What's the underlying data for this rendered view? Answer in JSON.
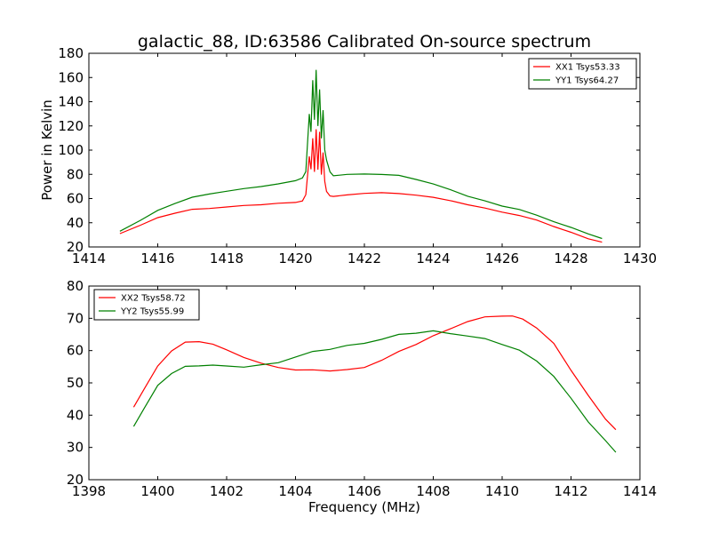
{
  "chart_data": [
    {
      "type": "line",
      "title": "galactic_88, ID:63586 Calibrated On-source spectrum",
      "xlabel": "",
      "ylabel": "Power in Kelvin",
      "xlim": [
        1414,
        1430
      ],
      "ylim": [
        20,
        180
      ],
      "xticks": [
        "1414",
        "1416",
        "1418",
        "1420",
        "1422",
        "1424",
        "1426",
        "1428",
        "1430"
      ],
      "yticks": [
        "20",
        "40",
        "60",
        "80",
        "100",
        "120",
        "140",
        "160",
        "180"
      ],
      "grid": false,
      "legend_position": "top-right",
      "series": [
        {
          "name": "XX1 Tsys53.33",
          "color": "#ff0000",
          "x": [
            1414.9,
            1415.5,
            1416.0,
            1416.5,
            1417.0,
            1417.5,
            1418.0,
            1418.5,
            1419.0,
            1419.5,
            1420.0,
            1420.2,
            1420.3,
            1420.4,
            1420.45,
            1420.5,
            1420.55,
            1420.6,
            1420.65,
            1420.7,
            1420.75,
            1420.8,
            1420.85,
            1420.9,
            1421.0,
            1421.1,
            1421.5,
            1422.0,
            1422.5,
            1423.0,
            1423.5,
            1424.0,
            1424.5,
            1425.0,
            1425.5,
            1426.0,
            1426.5,
            1427.0,
            1427.5,
            1428.0,
            1428.5,
            1428.9
          ],
          "y": [
            31,
            38,
            44,
            48,
            51,
            52,
            53,
            54,
            55,
            56,
            57,
            58,
            63,
            95,
            84,
            110,
            82,
            117,
            84,
            115,
            80,
            98,
            74,
            66,
            62,
            62,
            63,
            64,
            65,
            64,
            63,
            61,
            58,
            55,
            52,
            49,
            46,
            42,
            37,
            32,
            27,
            24
          ]
        },
        {
          "name": "YY1 Tsys64.27",
          "color": "#008000",
          "x": [
            1414.9,
            1415.5,
            1416.0,
            1416.5,
            1417.0,
            1417.5,
            1418.0,
            1418.5,
            1419.0,
            1419.5,
            1420.0,
            1420.2,
            1420.3,
            1420.4,
            1420.45,
            1420.5,
            1420.55,
            1420.6,
            1420.65,
            1420.7,
            1420.75,
            1420.8,
            1420.85,
            1420.9,
            1421.0,
            1421.1,
            1421.5,
            1422.0,
            1422.5,
            1423.0,
            1423.5,
            1424.0,
            1424.5,
            1425.0,
            1425.5,
            1426.0,
            1426.5,
            1427.0,
            1427.5,
            1428.0,
            1428.5,
            1428.9
          ],
          "y": [
            33,
            42,
            50,
            56,
            61,
            64,
            66,
            68,
            70,
            72,
            75,
            77,
            82,
            130,
            115,
            158,
            125,
            166,
            120,
            150,
            110,
            133,
            100,
            92,
            82,
            79,
            80,
            80,
            80,
            79,
            76,
            72,
            67,
            62,
            58,
            54,
            51,
            46,
            41,
            36,
            31,
            27
          ]
        }
      ]
    },
    {
      "type": "line",
      "title": "",
      "xlabel": "Frequency (MHz)",
      "ylabel": "",
      "xlim": [
        1398,
        1414
      ],
      "ylim": [
        20,
        80
      ],
      "xticks": [
        "1398",
        "1400",
        "1402",
        "1404",
        "1406",
        "1408",
        "1410",
        "1412",
        "1414"
      ],
      "yticks": [
        "20",
        "30",
        "40",
        "50",
        "60",
        "70",
        "80"
      ],
      "grid": false,
      "legend_position": "top-left",
      "series": [
        {
          "name": "XX2 Tsys58.72",
          "color": "#ff0000",
          "x": [
            1399.3,
            1399.6,
            1400.0,
            1400.4,
            1400.8,
            1401.2,
            1401.6,
            1402.0,
            1402.5,
            1403.0,
            1403.5,
            1404.0,
            1404.5,
            1405.0,
            1405.5,
            1406.0,
            1406.5,
            1407.0,
            1407.5,
            1408.0,
            1408.5,
            1409.0,
            1409.5,
            1410.0,
            1410.3,
            1410.6,
            1411.0,
            1411.5,
            1412.0,
            1412.5,
            1413.0,
            1413.3
          ],
          "y": [
            42.5,
            48,
            55,
            60,
            62.5,
            63,
            62,
            60,
            58,
            56,
            55,
            54,
            53.8,
            53.8,
            54,
            55,
            57,
            59.5,
            62,
            64.5,
            67,
            69,
            70.2,
            70.8,
            70.6,
            70,
            67,
            62,
            54,
            46,
            39,
            35.5
          ]
        },
        {
          "name": "YY2 Tsys55.99",
          "color": "#008000",
          "x": [
            1399.3,
            1399.6,
            1400.0,
            1400.4,
            1400.8,
            1401.2,
            1401.6,
            1402.0,
            1402.5,
            1403.0,
            1403.5,
            1404.0,
            1404.5,
            1405.0,
            1405.5,
            1406.0,
            1406.5,
            1407.0,
            1407.5,
            1408.0,
            1408.5,
            1409.0,
            1409.5,
            1410.0,
            1410.5,
            1411.0,
            1411.5,
            1412.0,
            1412.5,
            1413.0,
            1413.3
          ],
          "y": [
            36.5,
            42,
            49,
            53,
            55,
            55.5,
            55.5,
            55,
            55,
            55.5,
            56.5,
            58,
            59.5,
            60.5,
            61.5,
            62.5,
            63.5,
            64.8,
            65.5,
            66,
            65.5,
            64.5,
            63.5,
            62,
            60,
            57,
            52,
            45,
            38,
            32,
            28.5
          ]
        }
      ]
    }
  ]
}
